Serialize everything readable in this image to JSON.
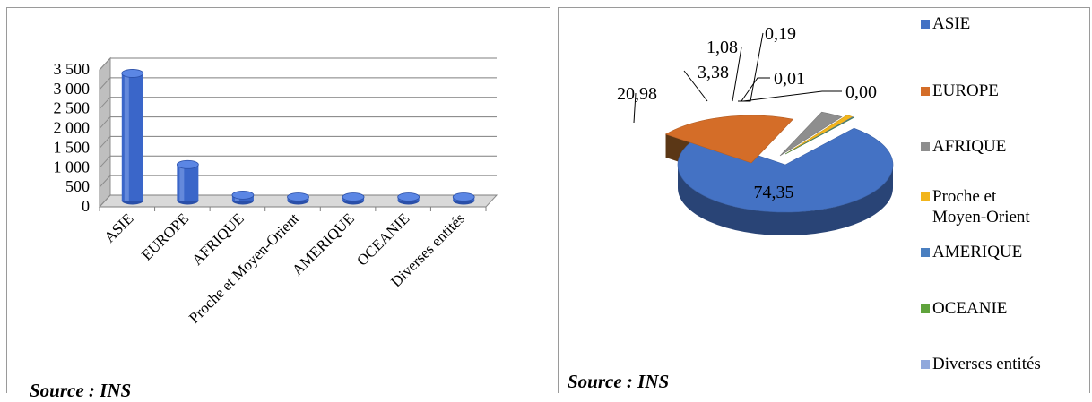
{
  "chart_data": [
    {
      "type": "bar",
      "style": "3d-cylinder",
      "categories": [
        "ASIE",
        "EUROPE",
        "AFRIQUE",
        "Proche et Moyen-Orient",
        "AMERIQUE",
        "OCEANIE",
        "Diverses entités"
      ],
      "values": [
        3250,
        920,
        140,
        60,
        25,
        15,
        8
      ],
      "ylim": [
        0,
        3500
      ],
      "yticks": [
        "0",
        "500",
        "1 000",
        "1 500",
        "2 000",
        "2 500",
        "3 000",
        "3 500"
      ],
      "grid": true,
      "color": "#3a66c9",
      "source": "Source : INS"
    },
    {
      "type": "pie",
      "style": "3d",
      "categories": [
        "ASIE",
        "EUROPE",
        "AFRIQUE",
        "Proche et Moyen-Orient",
        "AMERIQUE",
        "OCEANIE",
        "Diverses entités"
      ],
      "values": [
        74.35,
        20.98,
        3.38,
        1.08,
        0.19,
        0.01,
        0.0
      ],
      "value_labels": [
        "74,35",
        "20,98",
        "3,38",
        "1,08",
        "0,19",
        "0,01",
        "0,00"
      ],
      "colors": [
        "#4472c4",
        "#d46d28",
        "#8e8e8e",
        "#f2b51c",
        "#4a7fc0",
        "#5fa33c",
        "#90a8dc"
      ],
      "legend": [
        "ASIE",
        "EUROPE",
        "AFRIQUE",
        "Proche et Moyen-Orient",
        "AMERIQUE",
        "OCEANIE",
        "Diverses entités"
      ],
      "legend_labels": [
        "ASIE",
        "EUROPE",
        "AFRIQUE",
        "Proche et\nMoyen-Orient",
        "AMERIQUE",
        "OCEANIE",
        "Diverses entités"
      ],
      "legend_position": "right",
      "source": "Source : INS"
    }
  ]
}
